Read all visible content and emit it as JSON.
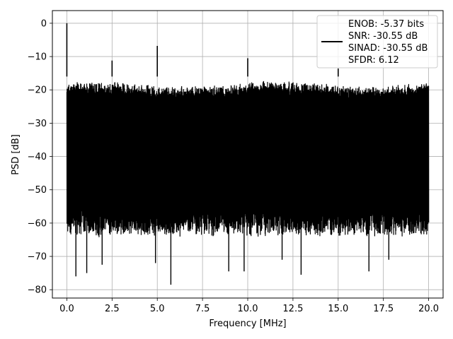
{
  "chart_data": {
    "type": "line",
    "title": "",
    "xlabel": "Frequency [MHz]",
    "ylabel": "PSD [dB]",
    "xlim": [
      -0.8,
      20.8
    ],
    "ylim": [
      -82.5,
      3.8
    ],
    "xticks": [
      0.0,
      2.5,
      5.0,
      7.5,
      10.0,
      12.5,
      15.0,
      17.5,
      20.0
    ],
    "xtick_labels": [
      "0.0",
      "2.5",
      "5.0",
      "7.5",
      "10.0",
      "12.5",
      "15.0",
      "17.5",
      "20.0"
    ],
    "yticks": [
      0,
      -10,
      -20,
      -30,
      -40,
      -50,
      -60,
      -70,
      -80
    ],
    "ytick_labels": [
      "0",
      "−10",
      "−20",
      "−30",
      "−40",
      "−50",
      "−60",
      "−70",
      "−80"
    ],
    "grid": true,
    "legend_position": "top-right",
    "legend_lines": [
      "ENOB: -5.37 bits",
      "SNR: -30.55 dB",
      "SINAD: -30.55 dB",
      "SFDR: 6.12"
    ],
    "series": [
      {
        "color": "#000000",
        "x_range": [
          0.0,
          20.0
        ],
        "noise_band": {
          "upper_typical": -18,
          "lower_typical": -60,
          "deep_minimum": -78.5
        },
        "spurs": [
          {
            "x": 0.0,
            "y": 0.0
          },
          {
            "x": 2.5,
            "y": -11.2
          },
          {
            "x": 5.0,
            "y": -6.8
          },
          {
            "x": 10.0,
            "y": -10.5
          },
          {
            "x": 15.0,
            "y": -13.6
          }
        ],
        "dips": [
          {
            "x": 0.5,
            "y": -76
          },
          {
            "x": 1.1,
            "y": -75
          },
          {
            "x": 1.95,
            "y": -72.5
          },
          {
            "x": 4.9,
            "y": -72
          },
          {
            "x": 5.75,
            "y": -78.5
          },
          {
            "x": 8.95,
            "y": -74.5
          },
          {
            "x": 9.8,
            "y": -74.5
          },
          {
            "x": 11.9,
            "y": -71
          },
          {
            "x": 12.95,
            "y": -75.5
          },
          {
            "x": 16.7,
            "y": -74.5
          },
          {
            "x": 17.8,
            "y": -71
          }
        ]
      }
    ]
  }
}
